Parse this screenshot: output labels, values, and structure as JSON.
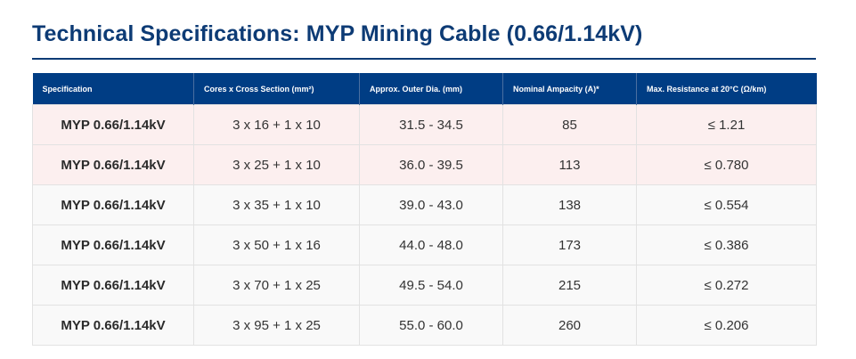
{
  "page": {
    "title": "Technical Specifications: MYP Mining Cable (0.66/1.14kV)"
  },
  "table": {
    "headers": [
      "Specification",
      "Cores x Cross Section (mm²)",
      "Approx. Outer Dia. (mm)",
      "Nominal Ampacity (A)*",
      "Max. Resistance at 20°C (Ω/km)"
    ],
    "rows": [
      {
        "spec": "MYP 0.66/1.14kV",
        "cores": "3 x 16 + 1 x 10",
        "diameter": "31.5 - 34.5",
        "ampacity": "85",
        "resistance": "≤ 1.21"
      },
      {
        "spec": "MYP 0.66/1.14kV",
        "cores": "3 x 25 + 1 x 10",
        "diameter": "36.0 - 39.5",
        "ampacity": "113",
        "resistance": "≤ 0.780"
      },
      {
        "spec": "MYP 0.66/1.14kV",
        "cores": "3 x 35 + 1 x 10",
        "diameter": "39.0 - 43.0",
        "ampacity": "138",
        "resistance": "≤ 0.554"
      },
      {
        "spec": "MYP 0.66/1.14kV",
        "cores": "3 x 50 + 1 x 16",
        "diameter": "44.0 - 48.0",
        "ampacity": "173",
        "resistance": "≤ 0.386"
      },
      {
        "spec": "MYP 0.66/1.14kV",
        "cores": "3 x 70 + 1 x 25",
        "diameter": "49.5 - 54.0",
        "ampacity": "215",
        "resistance": "≤ 0.272"
      },
      {
        "spec": "MYP 0.66/1.14kV",
        "cores": "3 x 95 + 1 x 25",
        "diameter": "55.0 - 60.0",
        "ampacity": "260",
        "resistance": "≤ 0.206"
      }
    ]
  },
  "colors": {
    "title": "#0d3b75",
    "header_bg": "#003d84",
    "highlight_row_bg": "#fcefef",
    "plain_row_bg": "#f9f9f9"
  }
}
